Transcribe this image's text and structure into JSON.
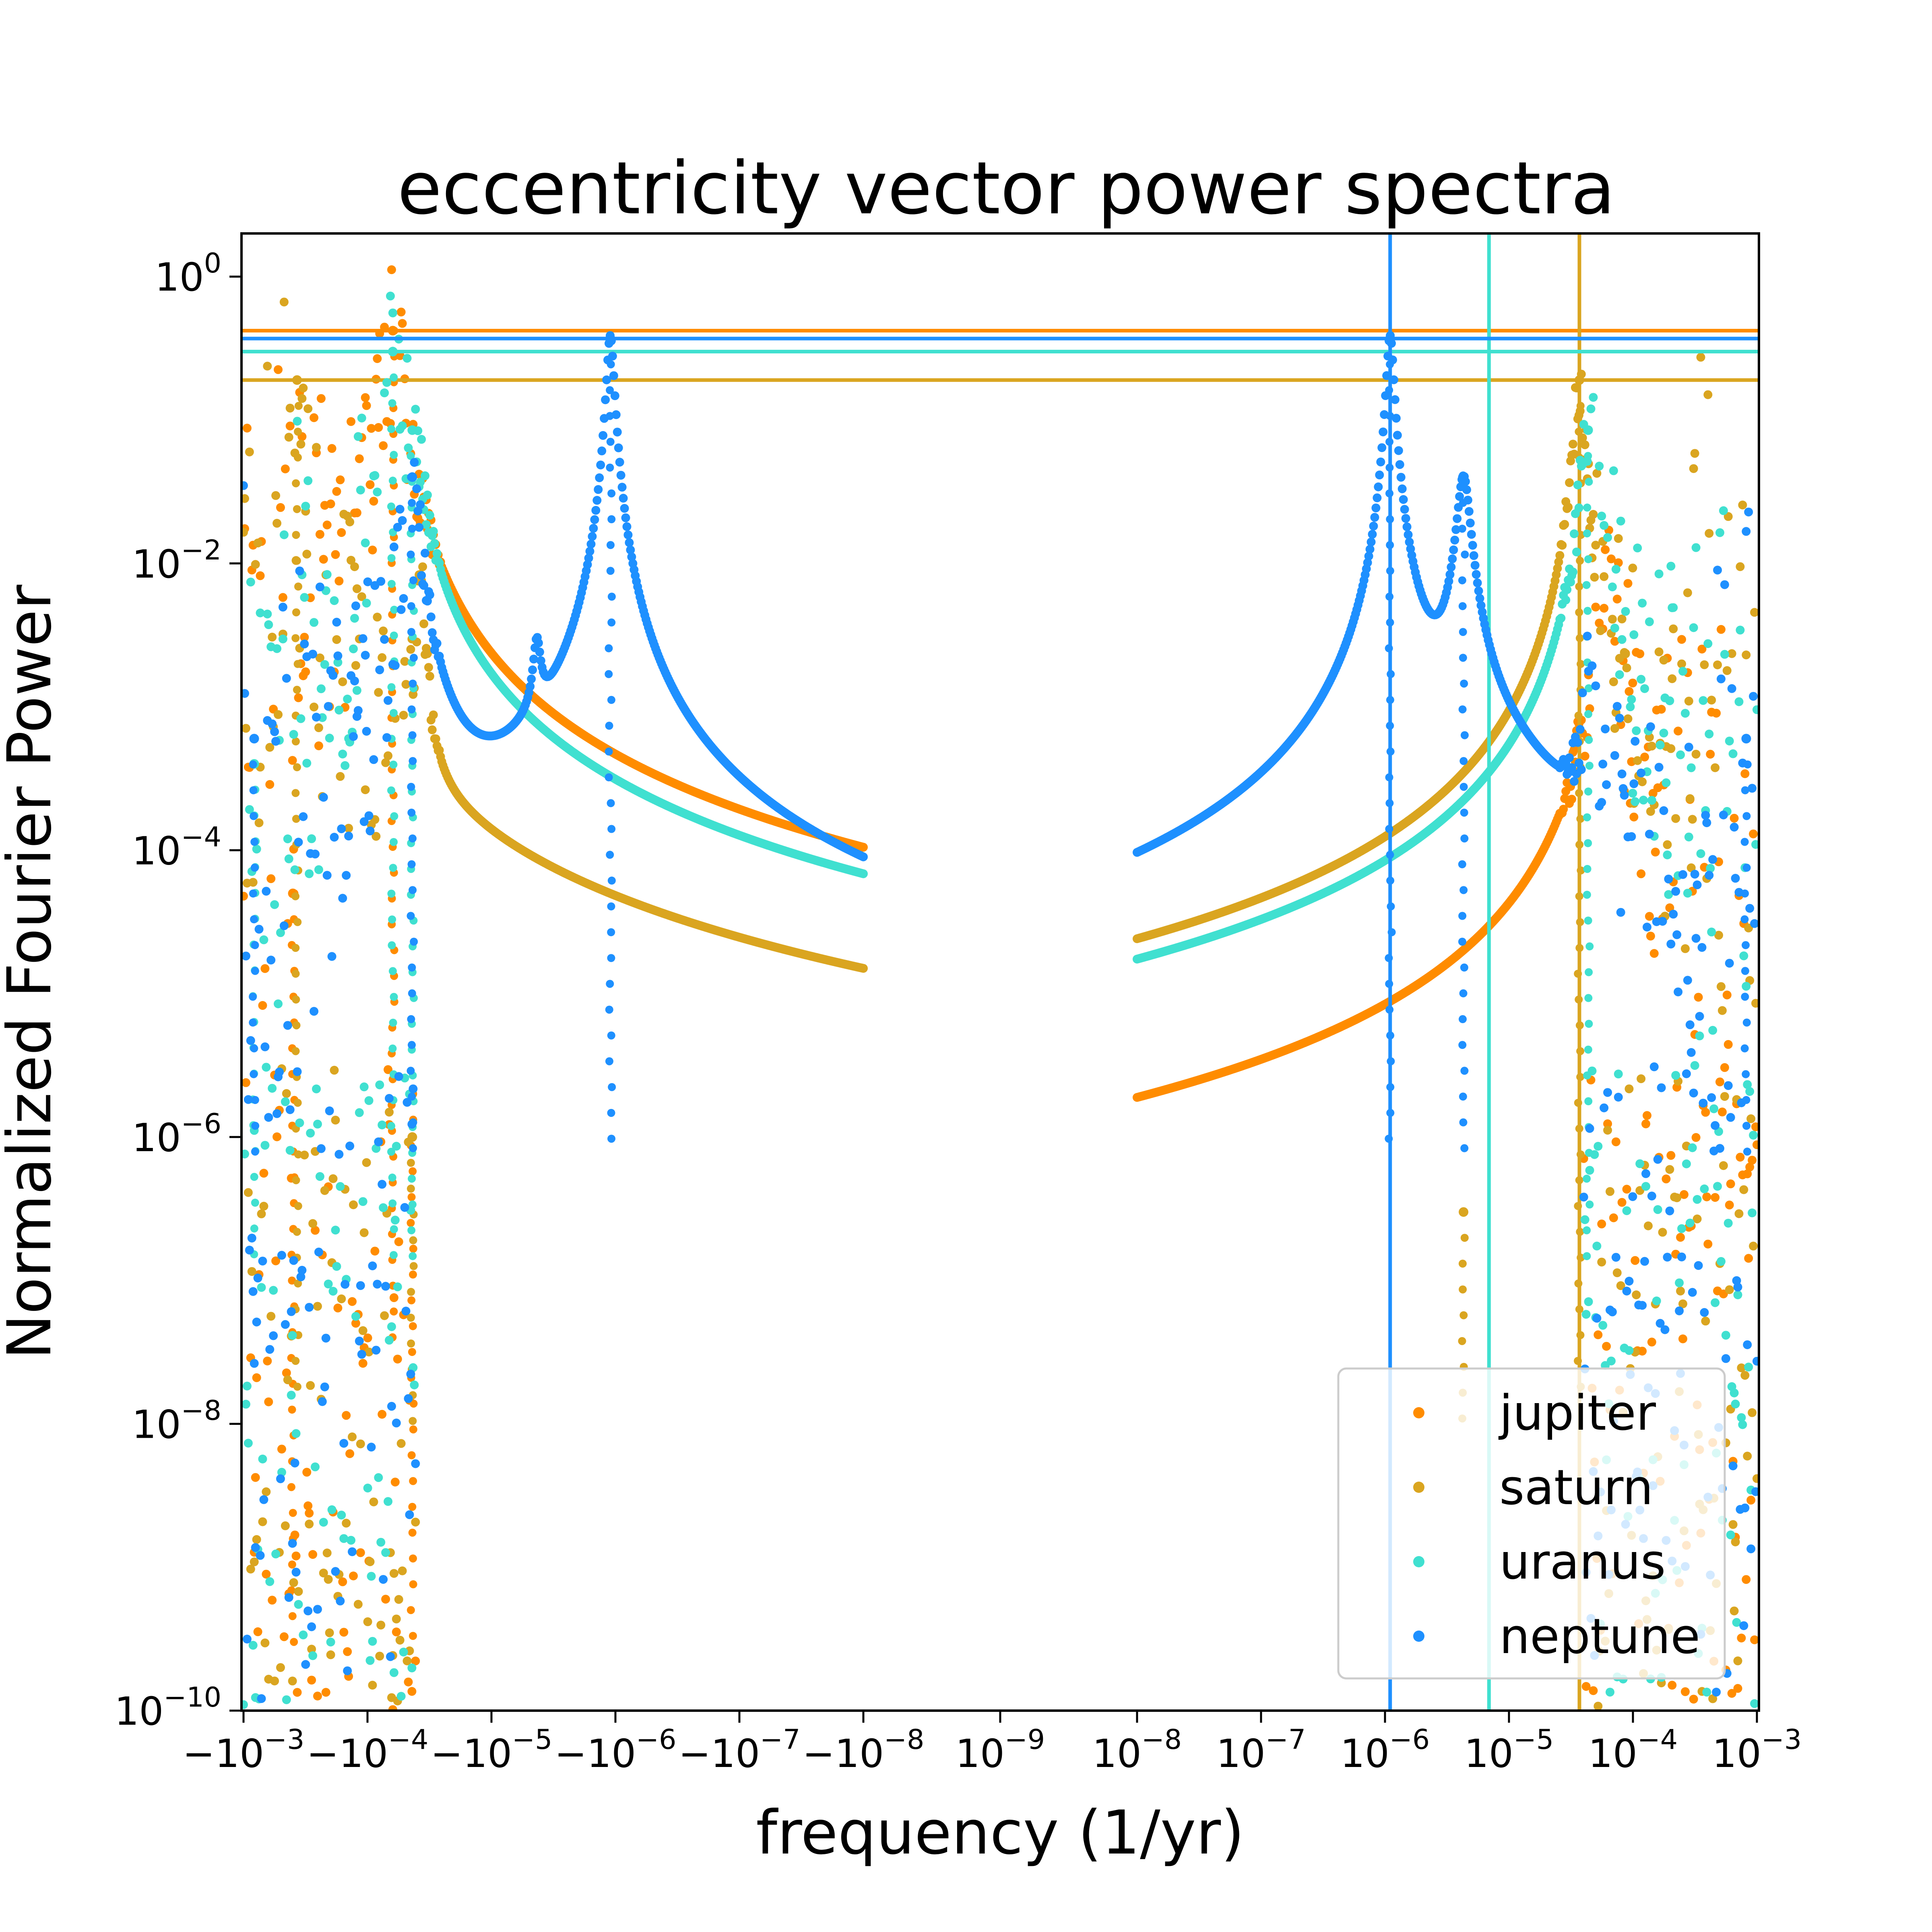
{
  "chart_data": {
    "type": "scatter",
    "title": "eccentricity vector power spectra",
    "xlabel": "frequency (1/yr)",
    "ylabel": "Normalized Fourier Power",
    "xscale": "symlog",
    "yscale": "log",
    "ylim": [
      1e-10,
      2
    ],
    "x_ticks": [
      {
        "label": "−10",
        "exp": "−3",
        "value": -0.001
      },
      {
        "label": "−10",
        "exp": "−4",
        "value": -0.0001
      },
      {
        "label": "−10",
        "exp": "−5",
        "value": -1e-05
      },
      {
        "label": "−10",
        "exp": "−6",
        "value": -1e-06
      },
      {
        "label": "−10",
        "exp": "−7",
        "value": -1e-07
      },
      {
        "label": "−10",
        "exp": "−8",
        "value": -1e-08
      },
      {
        "label": "10",
        "exp": "−9",
        "value": 0
      },
      {
        "label": "10",
        "exp": "−8",
        "value": 1e-08
      },
      {
        "label": "10",
        "exp": "−7",
        "value": 1e-07
      },
      {
        "label": "10",
        "exp": "−6",
        "value": 1e-06
      },
      {
        "label": "10",
        "exp": "−5",
        "value": 1e-05
      },
      {
        "label": "10",
        "exp": "−4",
        "value": 0.0001
      },
      {
        "label": "10",
        "exp": "−3",
        "value": 0.001
      }
    ],
    "y_ticks": [
      {
        "label": "10",
        "exp": "0",
        "value": 1
      },
      {
        "label": "10",
        "exp": "−2",
        "value": 0.01
      },
      {
        "label": "10",
        "exp": "−4",
        "value": 0.0001
      },
      {
        "label": "10",
        "exp": "−6",
        "value": 1e-06
      },
      {
        "label": "10",
        "exp": "−8",
        "value": 1e-08
      },
      {
        "label": "10",
        "exp": "−10",
        "value": 1e-10
      }
    ],
    "legend": {
      "position": "lower-right",
      "entries": [
        "jupiter",
        "saturn",
        "uranus",
        "neptune"
      ]
    },
    "series": [
      {
        "name": "jupiter",
        "color": "#ff8c00",
        "baseline": 2.5e-10,
        "peak_power": 0.42,
        "peaks": [
          {
            "freq": -6.25e-05,
            "power": 0.42,
            "width": 0.06
          },
          {
            "freq": -4.35e-05,
            "power": 2e-06,
            "width": 0.05
          },
          {
            "freq": -0.0004,
            "power": 5e-05,
            "width": 0.03
          }
        ],
        "hline": 0.42
      },
      {
        "name": "saturn",
        "color": "#daa520",
        "baseline": 9e-09,
        "peak_power": 0.19,
        "peaks": [
          {
            "freq": -0.00037,
            "power": 0.19,
            "width": 0.04
          },
          {
            "freq": -4.35e-05,
            "power": 1e-06,
            "width": 0.05
          },
          {
            "freq": 3.7e-05,
            "power": 0.19,
            "width": 0.04
          },
          {
            "freq": 4.3e-06,
            "power": 3e-07,
            "width": 0.05
          }
        ],
        "hline": 0.19,
        "vline": 3.7e-05
      },
      {
        "name": "uranus",
        "color": "#40e0d0",
        "baseline": 1.3e-07,
        "peak_power": 0.3,
        "peaks": [
          {
            "freq": -6.25e-05,
            "power": 0.3,
            "width": 0.05
          },
          {
            "freq": -4.35e-05,
            "power": 0.085,
            "width": 0.05
          },
          {
            "freq": 4.35e-05,
            "power": 0.085,
            "width": 0.05
          },
          {
            "freq": -0.00082,
            "power": 0.0004,
            "width": 0.03
          }
        ],
        "hline": 0.3,
        "vline": 6.9e-06
      },
      {
        "name": "neptune",
        "color": "#1e90ff",
        "baseline": 7e-07,
        "peak_power": 0.37,
        "peaks": [
          {
            "freq": -4.35e-05,
            "power": 0.04,
            "width": 0.05
          },
          {
            "freq": -1.1e-06,
            "power": 0.37,
            "width": 0.03
          },
          {
            "freq": 1.1e-06,
            "power": 0.37,
            "width": 0.03
          },
          {
            "freq": 4.3e-06,
            "power": 0.04,
            "width": 0.05
          },
          {
            "freq": -0.00082,
            "power": 0.0006,
            "width": 0.03
          },
          {
            "freq": 0.00082,
            "power": 0.0006,
            "width": 0.03
          }
        ],
        "hline": 0.37,
        "vline": 1.1e-06
      }
    ]
  }
}
